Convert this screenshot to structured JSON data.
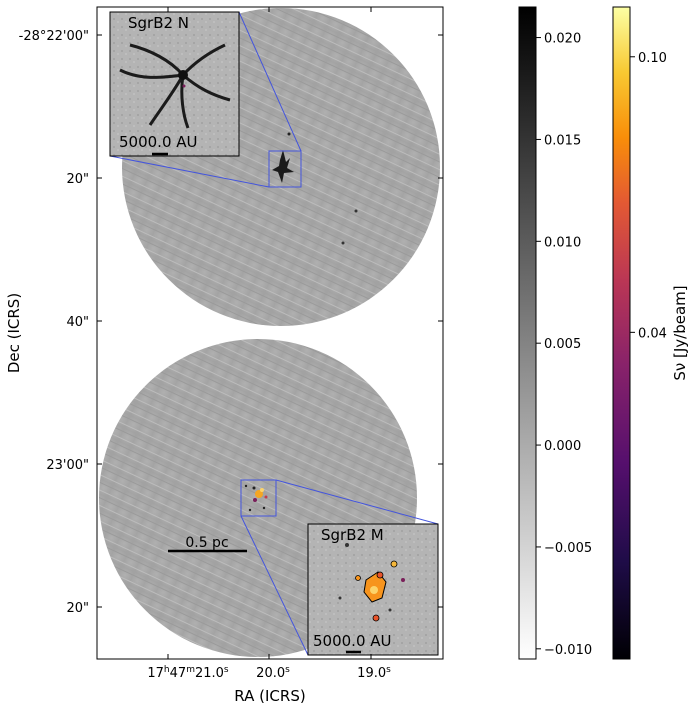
{
  "chart_data": {
    "type": "image",
    "xlabel": "RA (ICRS)",
    "ylabel": "Dec (ICRS)",
    "x_ticks": [
      {
        "h": "17",
        "m": "47",
        "s": "21.0"
      },
      {
        "h": "",
        "m": "",
        "s": "20.0"
      },
      {
        "h": "",
        "m": "",
        "s": "19.0"
      }
    ],
    "y_ticks": [
      "-28°22'00\"",
      "20\"",
      "40\"",
      "23'00\"",
      "20\""
    ],
    "scalebar_label": "0.5 pc",
    "insets": [
      {
        "title": "SgrB2 N",
        "scale_label": "5000.0 AU"
      },
      {
        "title": "SgrB2 M",
        "scale_label": "5000.0 AU"
      }
    ],
    "colorbar_gray": {
      "ticks": [
        0.02,
        0.015,
        0.01,
        0.005,
        0.0,
        -0.005,
        -0.01
      ],
      "tick_labels": [
        "0.020",
        "0.015",
        "0.010",
        "0.005",
        "0.000",
        "−0.005",
        "−0.010"
      ]
    },
    "colorbar_inferno": {
      "ticks": [
        0.1,
        0.04
      ],
      "tick_labels": [
        "0.10",
        "0.04"
      ],
      "label": "Sν [Jy/beam]"
    }
  },
  "colors": {
    "inset_box": "#4455dd",
    "map_gray": "#a9a9a9"
  }
}
